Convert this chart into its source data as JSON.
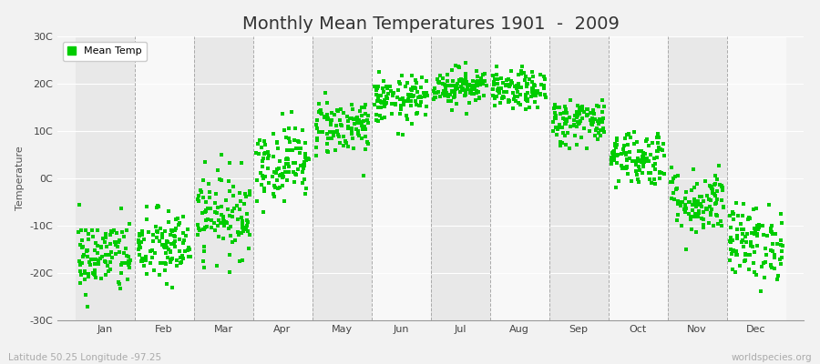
{
  "title": "Monthly Mean Temperatures 1901  -  2009",
  "ylabel": "Temperature",
  "xlabel_bottom_left": "Latitude 50.25 Longitude -97.25",
  "xlabel_bottom_right": "worldspecies.org",
  "legend_label": "Mean Temp",
  "marker_color": "#00CC00",
  "marker_size": 3,
  "bg_color": "#f2f2f2",
  "plot_bg_color": "#f2f2f2",
  "band_even": "#e8e8e8",
  "band_odd": "#f8f8f8",
  "ylim": [
    -30,
    30
  ],
  "yticks": [
    -30,
    -20,
    -10,
    0,
    10,
    20,
    30
  ],
  "ytick_labels": [
    "-30C",
    "-20C",
    "-10C",
    "0C",
    "10C",
    "20C",
    "30C"
  ],
  "months": [
    "Jan",
    "Feb",
    "Mar",
    "Apr",
    "May",
    "Jun",
    "Jul",
    "Aug",
    "Sep",
    "Oct",
    "Nov",
    "Dec"
  ],
  "month_means": [
    -16.5,
    -14.5,
    -7.5,
    3.5,
    11.0,
    16.5,
    19.5,
    18.5,
    12.0,
    4.5,
    -5.0,
    -13.5
  ],
  "month_stds": [
    4.0,
    4.0,
    4.5,
    4.0,
    3.0,
    2.5,
    2.0,
    2.0,
    2.5,
    3.0,
    3.5,
    4.0
  ],
  "n_years": 109,
  "random_seed": 42,
  "title_fontsize": 14,
  "axis_label_fontsize": 8,
  "tick_fontsize": 8,
  "legend_fontsize": 8
}
